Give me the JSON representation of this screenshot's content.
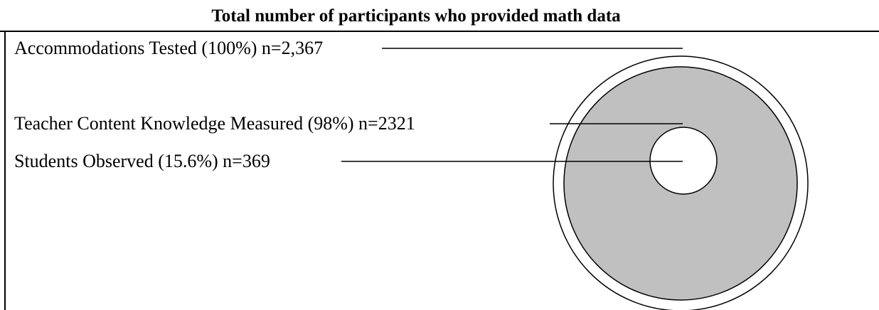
{
  "title": "Total number of participants who provided math data",
  "labels": [
    "Accommodations Tested (100%) n=2,367",
    "Teacher Content Knowledge Measured (98%) n=2321",
    "Students Observed (15.6%) n=369"
  ]
}
